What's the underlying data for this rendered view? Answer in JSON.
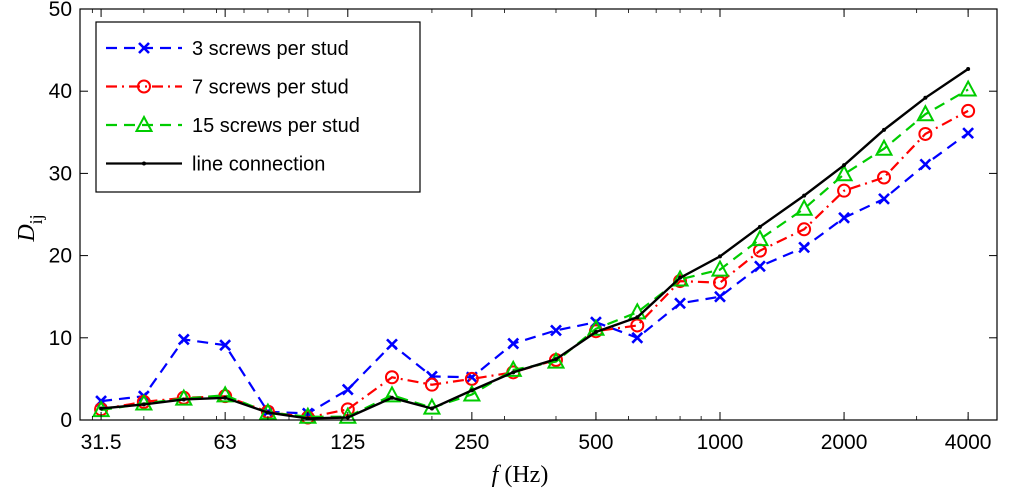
{
  "chart_data": {
    "type": "line",
    "xscale": "log",
    "x": [
      31.5,
      40,
      50,
      63,
      80,
      100,
      125,
      160,
      200,
      250,
      315,
      400,
      500,
      630,
      800,
      1000,
      1250,
      1600,
      2000,
      2500,
      3150,
      4000
    ],
    "xticks": [
      "31.5",
      "63",
      "125",
      "250",
      "500",
      "1000",
      "2000",
      "4000"
    ],
    "xtick_values": [
      31.5,
      63,
      125,
      250,
      500,
      1000,
      2000,
      4000
    ],
    "xlim": [
      28,
      4700
    ],
    "ylim": [
      0,
      50
    ],
    "yticks": [
      0,
      10,
      20,
      30,
      40,
      50
    ],
    "xlabel_var": "f",
    "xlabel_unit": " (Hz)",
    "ylabel_main": "D",
    "ylabel_sub": "ij",
    "legend_position": "top-left",
    "grid": false,
    "series": [
      {
        "name": "3 screws per stud",
        "color": "#0000ff",
        "line": "dashed",
        "marker": "x",
        "values": [
          2.3,
          2.9,
          9.8,
          9.1,
          1.0,
          0.8,
          3.7,
          9.2,
          5.3,
          5.2,
          9.3,
          10.9,
          11.9,
          10.0,
          14.2,
          15.0,
          18.7,
          21.0,
          24.6,
          26.9,
          31.1,
          34.9
        ]
      },
      {
        "name": "7 screws per stud",
        "color": "#ff0000",
        "line": "dashdot",
        "marker": "circle",
        "values": [
          1.3,
          2.2,
          2.7,
          2.9,
          1.0,
          0.3,
          1.3,
          5.2,
          4.3,
          5.0,
          5.8,
          7.3,
          10.8,
          11.5,
          16.9,
          16.7,
          20.6,
          23.2,
          27.9,
          29.5,
          34.8,
          37.6
        ]
      },
      {
        "name": "15 screws per stud",
        "color": "#00cc00",
        "line": "dashed",
        "marker": "triangle",
        "values": [
          1.2,
          2.0,
          2.6,
          3.0,
          0.9,
          0.4,
          0.4,
          3.0,
          1.5,
          3.1,
          6.1,
          7.1,
          11.1,
          13.1,
          17.1,
          18.3,
          22.0,
          25.7,
          29.9,
          33.0,
          37.2,
          40.2
        ]
      },
      {
        "name": "line connection",
        "color": "#000000",
        "line": "solid",
        "marker": "dot",
        "values": [
          1.4,
          1.9,
          2.5,
          2.7,
          0.9,
          0.2,
          0.3,
          2.7,
          1.4,
          3.6,
          5.8,
          7.4,
          10.7,
          12.5,
          17.3,
          19.9,
          23.5,
          27.3,
          31.0,
          35.3,
          39.2,
          42.7
        ]
      }
    ]
  }
}
